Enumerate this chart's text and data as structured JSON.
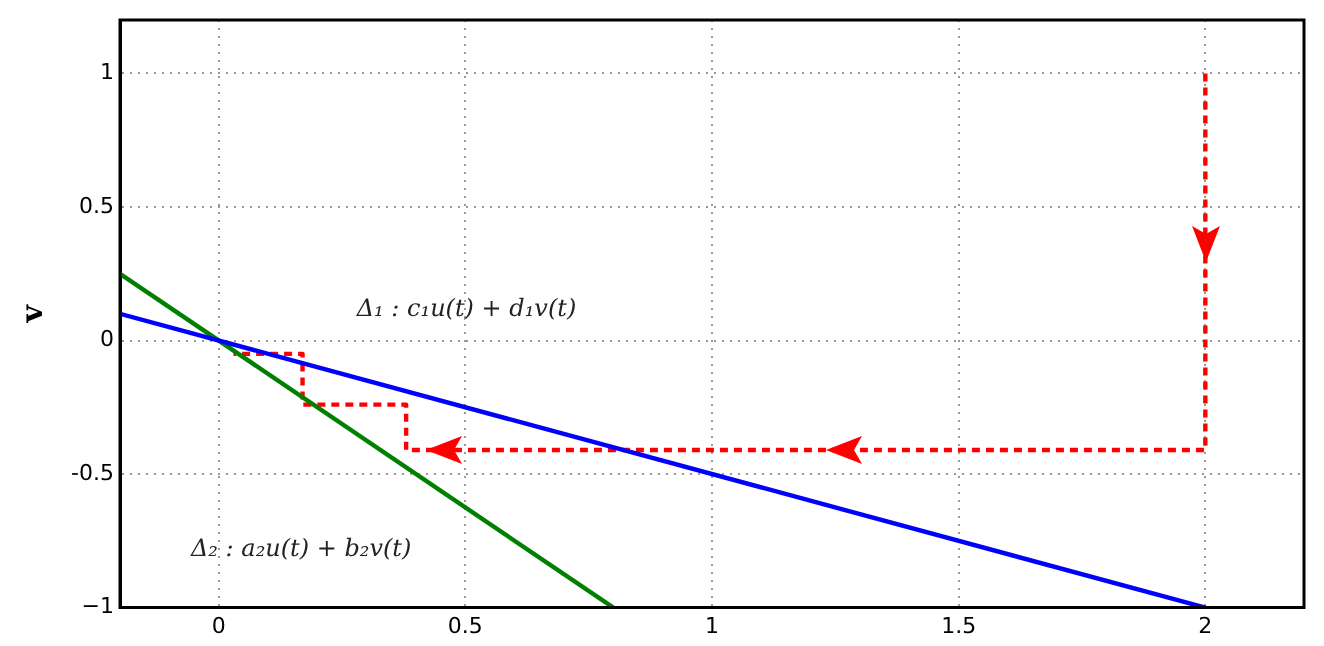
{
  "chart_data": {
    "type": "line",
    "ylabel": "v",
    "xlim": [
      -0.2,
      2.2
    ],
    "ylim": [
      -1,
      1.2
    ],
    "xticks": [
      0,
      0.5,
      1,
      1.5,
      2
    ],
    "yticks": [
      {
        "value": -1,
        "label": "−1"
      },
      -0.5,
      0,
      0.5,
      1
    ],
    "grid": true,
    "legend": false,
    "marker": "none",
    "series": [
      {
        "color": "#0000ff",
        "x": [
          -0.2,
          2
        ],
        "values": [
          0.1,
          -1
        ],
        "line_style": "solid"
      },
      {
        "color": "#008000",
        "x": [
          -0.2,
          0.8
        ],
        "values": [
          0.25,
          -1
        ],
        "line_style": "solid"
      },
      {
        "color": "#ff0000",
        "x": [
          2,
          2,
          0.38,
          0.38,
          0.17,
          0.17,
          0.03
        ],
        "values": [
          1,
          -0.41,
          -0.41,
          -0.24,
          -0.24,
          -0.05,
          -0.05
        ],
        "line_style": "dashed"
      }
    ],
    "annotations": [
      "Δ₁ : c₁u(t) + d₁v(t)",
      "Δ₂ : a₂u(t) + b₂v(t)"
    ]
  }
}
